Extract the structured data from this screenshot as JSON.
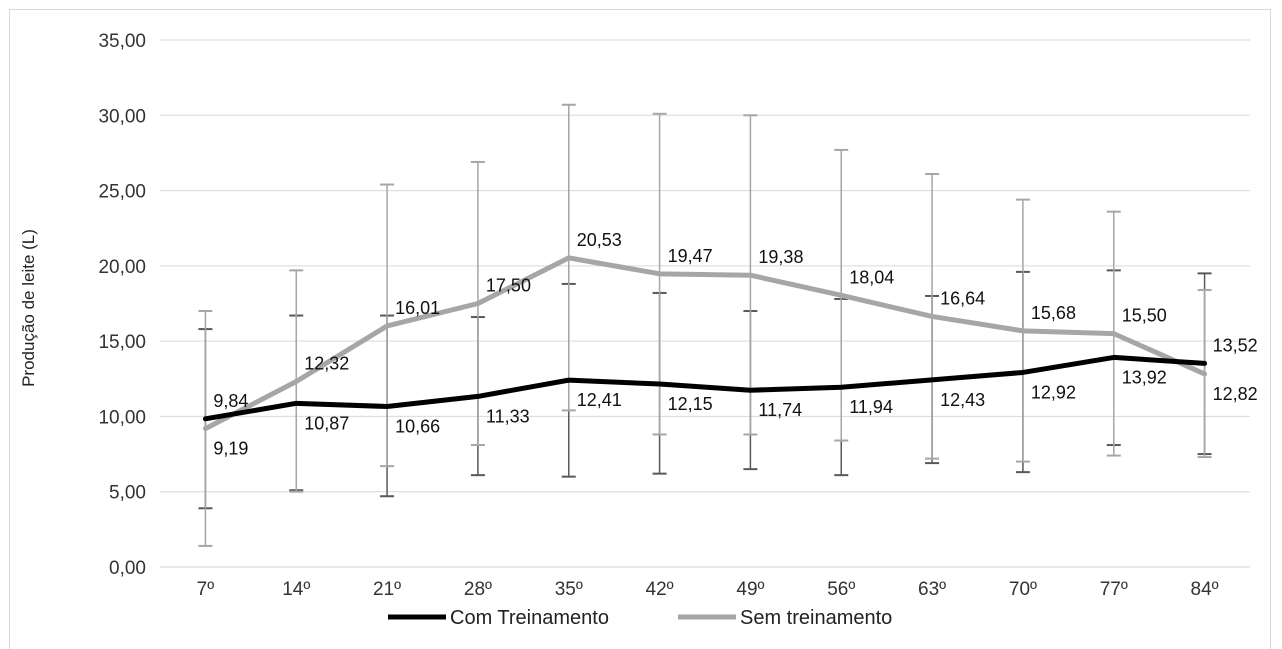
{
  "chart_data": {
    "type": "line",
    "title": "",
    "xlabel": "",
    "ylabel": "Produção de leite (L)",
    "ylim": [
      0,
      35
    ],
    "yticks": [
      "0,00",
      "5,00",
      "10,00",
      "15,00",
      "20,00",
      "25,00",
      "30,00",
      "35,00"
    ],
    "categories": [
      "7º",
      "14º",
      "21º",
      "28º",
      "35º",
      "42º",
      "49º",
      "56º",
      "63º",
      "70º",
      "77º",
      "84º"
    ],
    "grid": true,
    "legend_position": "bottom",
    "series": [
      {
        "name": "Com Treinamento",
        "color": "#000000",
        "values": [
          9.84,
          10.87,
          10.66,
          11.33,
          12.41,
          12.15,
          11.74,
          11.94,
          12.43,
          12.92,
          13.92,
          13.52
        ],
        "labels": [
          "9,84",
          "10,87",
          "10,66",
          "11,33",
          "12,41",
          "12,15",
          "11,74",
          "11,94",
          "12,43",
          "12,92",
          "13,92",
          "13,52"
        ],
        "error_low": [
          3.9,
          5.1,
          4.7,
          6.1,
          6.0,
          6.2,
          6.5,
          6.1,
          6.9,
          6.3,
          8.1,
          7.5
        ],
        "error_high": [
          15.8,
          16.7,
          16.7,
          16.6,
          18.8,
          18.2,
          17.0,
          17.8,
          18.0,
          19.6,
          19.7,
          19.5
        ]
      },
      {
        "name": "Sem treinamento",
        "color": "#a6a6a6",
        "values": [
          9.19,
          12.32,
          16.01,
          17.5,
          20.53,
          19.47,
          19.38,
          18.04,
          16.64,
          15.68,
          15.5,
          12.82
        ],
        "labels": [
          "9,19",
          "12,32",
          "16,01",
          "17,50",
          "20,53",
          "19,47",
          "19,38",
          "18,04",
          "16,64",
          "15,68",
          "15,50",
          "12,82"
        ],
        "error_low": [
          1.4,
          5.0,
          6.7,
          8.1,
          10.4,
          8.8,
          8.8,
          8.4,
          7.2,
          7.0,
          7.4,
          7.3
        ],
        "error_high": [
          17.0,
          19.7,
          25.4,
          26.9,
          30.7,
          30.1,
          30.0,
          27.7,
          26.1,
          24.4,
          23.6,
          18.4
        ]
      }
    ]
  }
}
